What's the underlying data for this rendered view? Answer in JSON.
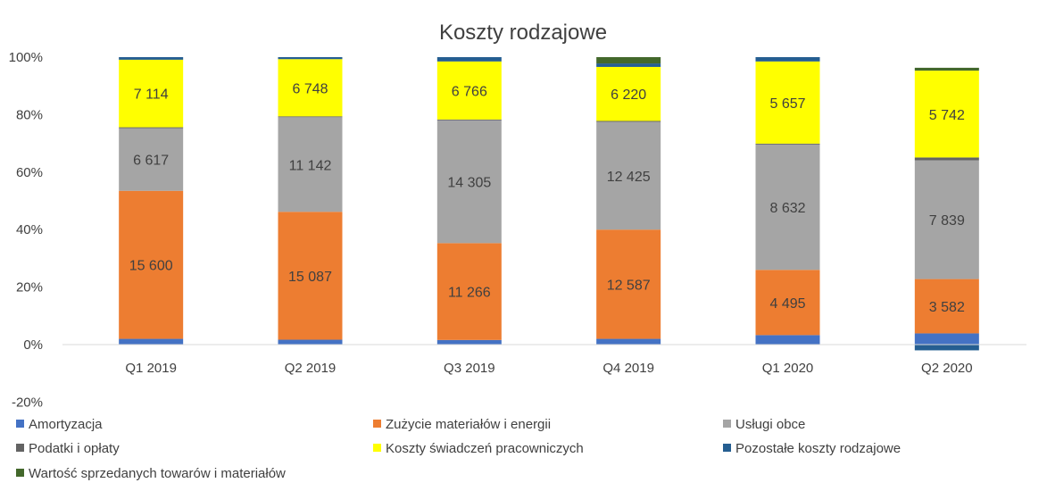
{
  "chart_data": {
    "type": "bar",
    "stacked": true,
    "percent_stacked": true,
    "title": "Koszty rodzajowe",
    "categories": [
      "Q1 2019",
      "Q2 2019",
      "Q3 2019",
      "Q4 2019",
      "Q1 2020",
      "Q2 2020"
    ],
    "ylim": [
      -0.2,
      1.0
    ],
    "yticks": [
      {
        "value": 1.0,
        "label": "100%"
      },
      {
        "value": 0.8,
        "label": "80%"
      },
      {
        "value": 0.6,
        "label": "60%"
      },
      {
        "value": 0.4,
        "label": "40%"
      },
      {
        "value": 0.2,
        "label": "20%"
      },
      {
        "value": 0.0,
        "label": "0%"
      },
      {
        "value": -0.2,
        "label": "-20%"
      }
    ],
    "grid": false,
    "legend_position": "bottom",
    "series": [
      {
        "name": "Amortyzacja",
        "color": "#4472C4",
        "values": [
          0.02,
          0.017,
          0.016,
          0.02,
          0.033,
          0.039
        ],
        "labels": [
          "",
          "",
          "",
          "",
          "",
          ""
        ]
      },
      {
        "name": "Zużycie materiałów i energii",
        "color": "#ED7D31",
        "values": [
          0.515,
          0.445,
          0.337,
          0.38,
          0.227,
          0.189
        ],
        "labels": [
          "15 600",
          "15 087",
          "11 266",
          "12 587",
          "4 495",
          "3 582"
        ]
      },
      {
        "name": "Usługi obce",
        "color": "#A5A5A5",
        "values": [
          0.218,
          0.329,
          0.427,
          0.375,
          0.436,
          0.413
        ],
        "labels": [
          "6 617",
          "11 142",
          "14 305",
          "12 425",
          "8 632",
          "7 839"
        ]
      },
      {
        "name": "Podatki i opłaty",
        "color": "#636363",
        "values": [
          0.003,
          0.003,
          0.003,
          0.003,
          0.003,
          0.01
        ],
        "labels": [
          "",
          "",
          "",
          "",
          "",
          ""
        ]
      },
      {
        "name": "Koszty świadczeń pracowniczych",
        "color": "#FFFF00",
        "values": [
          0.235,
          0.199,
          0.202,
          0.188,
          0.286,
          0.302
        ],
        "labels": [
          "7 114",
          "6 748",
          "6 766",
          "6 220",
          "5 657",
          "5 742"
        ]
      },
      {
        "name": "Pozostałe koszty rodzajowe",
        "color": "#255E91",
        "values": [
          0.009,
          0.007,
          0.015,
          0.012,
          0.015,
          -0.02
        ],
        "labels": [
          "",
          "",
          "",
          "",
          "",
          ""
        ]
      },
      {
        "name": "Wartość sprzedanych towarów i materiałów",
        "color": "#43682B",
        "values": [
          0.0,
          0.0,
          0.0,
          0.022,
          0.0,
          0.01
        ],
        "labels": [
          "",
          "",
          "",
          "",
          "",
          ""
        ]
      }
    ]
  }
}
